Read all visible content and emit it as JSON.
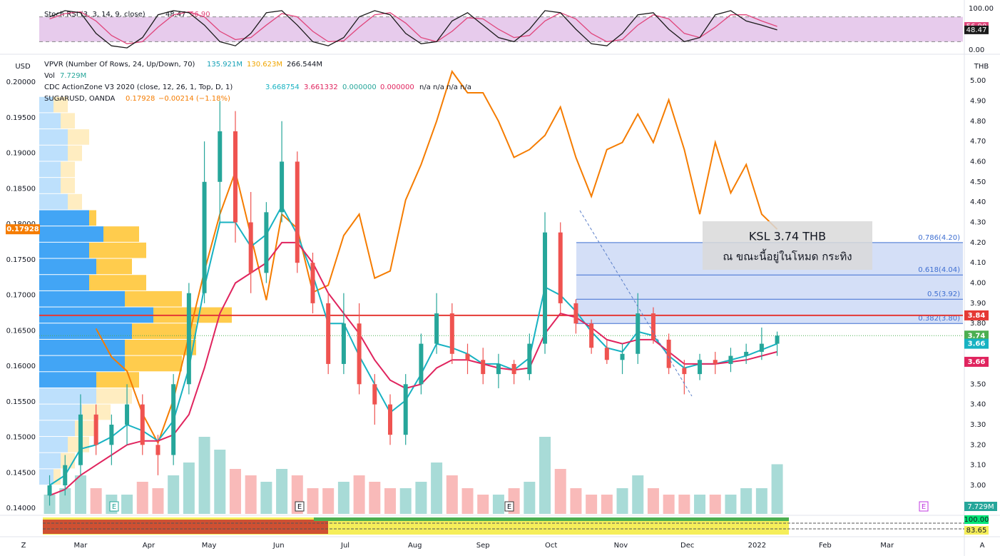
{
  "chart_data": {
    "type": "candlestick",
    "stoch": {
      "title": "Stoch RSI (3, 3, 14, 9, close)",
      "ylim": [
        0,
        100
      ],
      "bands": [
        20,
        80
      ],
      "yticks": [
        {
          "value": 0,
          "label": "0.00"
        },
        {
          "value": 100,
          "label": "100.00"
        }
      ],
      "k": {
        "name": "48.47",
        "color": "#1a1a1a",
        "values": [
          80,
          95,
          90,
          40,
          10,
          5,
          30,
          85,
          95,
          90,
          60,
          20,
          10,
          40,
          90,
          95,
          60,
          20,
          10,
          30,
          80,
          95,
          85,
          40,
          15,
          20,
          70,
          90,
          60,
          30,
          20,
          50,
          95,
          90,
          50,
          15,
          10,
          40,
          85,
          90,
          50,
          20,
          30,
          85,
          95,
          70,
          60,
          48.47
        ]
      },
      "d": {
        "name": "56.90",
        "color": "#e0457b",
        "values": [
          75,
          88,
          92,
          70,
          35,
          15,
          20,
          55,
          85,
          92,
          80,
          45,
          25,
          30,
          60,
          88,
          80,
          45,
          20,
          22,
          55,
          85,
          90,
          65,
          30,
          20,
          45,
          78,
          75,
          50,
          30,
          35,
          70,
          90,
          75,
          40,
          20,
          25,
          60,
          85,
          75,
          40,
          30,
          55,
          85,
          85,
          70,
          56.9
        ],
        "value_labels": {
          "47": "56.90"
        }
      }
    },
    "legend": {
      "vpvr": "VPVR (Number Of Rows, 24, Up/Down, 70)",
      "vpvr_up": "135.921M",
      "vpvr_down": "130.623M",
      "vpvr_total": "266.544M",
      "vol": "Vol",
      "vol_value": "7.729M",
      "cdc": "CDC ActionZone V3 2020 (close, 12, 26, 1, Top, D, 1)",
      "cdc_values": [
        "3.668754",
        "3.661332",
        "0.000000",
        "0.000000",
        "n/a n/a n/a n/a"
      ],
      "sugar": "SUGARUSD, OANDA",
      "sugar_last": "0.17928",
      "sugar_change": "−0.00214 (−1.18%)"
    },
    "ylabel": "USD",
    "y2label": "THB",
    "xlim": [
      -0.67,
      59
    ],
    "xticks": [
      {
        "value": 2,
        "label": "Mar"
      },
      {
        "value": 6.4,
        "label": "Apr"
      },
      {
        "value": 10.3,
        "label": "May"
      },
      {
        "value": 14.8,
        "label": "Jun"
      },
      {
        "value": 19.1,
        "label": "Jul"
      },
      {
        "value": 23.6,
        "label": "Aug"
      },
      {
        "value": 28,
        "label": "Sep"
      },
      {
        "value": 32.4,
        "label": "Oct"
      },
      {
        "value": 36.9,
        "label": "Nov"
      },
      {
        "value": 41.2,
        "label": "Dec"
      },
      {
        "value": 45.7,
        "label": "2022"
      },
      {
        "value": 50.1,
        "label": "Feb"
      },
      {
        "value": 54.1,
        "label": "Mar"
      }
    ],
    "ylim": [
      0.1392,
      0.20302
    ],
    "yticks": [
      {
        "value": 0.14,
        "label": "0.14000"
      },
      {
        "value": 0.145,
        "label": "0.14500"
      },
      {
        "value": 0.15,
        "label": "0.15000"
      },
      {
        "value": 0.155,
        "label": "0.15500"
      },
      {
        "value": 0.16,
        "label": "0.16000"
      },
      {
        "value": 0.165,
        "label": "0.16500"
      },
      {
        "value": 0.17,
        "label": "0.17000"
      },
      {
        "value": 0.175,
        "label": "0.17500"
      },
      {
        "value": 0.18,
        "label": "0.18000"
      },
      {
        "value": 0.185,
        "label": "0.18500"
      },
      {
        "value": 0.19,
        "label": "0.19000"
      },
      {
        "value": 0.195,
        "label": "0.19500"
      },
      {
        "value": 0.2,
        "label": "0.20000"
      }
    ],
    "y2lim": [
      2.859,
      5.099
    ],
    "y2ticks": [
      {
        "value": 3,
        "label": "3.00"
      },
      {
        "value": 3.1,
        "label": "3.10"
      },
      {
        "value": 3.2,
        "label": "3.20"
      },
      {
        "value": 3.3,
        "label": "3.30"
      },
      {
        "value": 3.4,
        "label": "3.40"
      },
      {
        "value": 3.5,
        "label": "3.50"
      },
      {
        "value": 3.6,
        "label": "3.60"
      },
      {
        "value": 3.7,
        "label": "3.70"
      },
      {
        "value": 3.8,
        "label": "3.80"
      },
      {
        "value": 3.9,
        "label": "3.90"
      },
      {
        "value": 4,
        "label": "4.00"
      },
      {
        "value": 4.1,
        "label": "4.10"
      },
      {
        "value": 4.2,
        "label": "4.20"
      },
      {
        "value": 4.3,
        "label": "4.30"
      },
      {
        "value": 4.4,
        "label": "4.40"
      },
      {
        "value": 4.5,
        "label": "4.50"
      },
      {
        "value": 4.6,
        "label": "4.60"
      },
      {
        "value": 4.7,
        "label": "4.70"
      },
      {
        "value": 4.8,
        "label": "4.80"
      },
      {
        "value": 4.9,
        "label": "4.90"
      },
      {
        "value": 5,
        "label": "5.00"
      }
    ],
    "grid": false,
    "candles": {
      "axis": "y2",
      "up_color": "#26a69a",
      "down_color": "#ef5350",
      "open": [
        2.95,
        3.0,
        3.1,
        3.35,
        3.2,
        3.3,
        3.4,
        3.2,
        3.15,
        3.5,
        3.95,
        4.5,
        4.75,
        4.3,
        4.05,
        4.35,
        4.6,
        4.1,
        3.9,
        3.6,
        3.8,
        3.5,
        3.4,
        3.25,
        3.5,
        3.7,
        3.85,
        3.65,
        3.62,
        3.55,
        3.6,
        3.55,
        3.7,
        4.25,
        3.9,
        3.8,
        3.68,
        3.62,
        3.65,
        3.85,
        3.72,
        3.58,
        3.55,
        3.62,
        3.6,
        3.64,
        3.66,
        3.7
      ],
      "high": [
        3.05,
        3.15,
        3.45,
        3.4,
        3.35,
        3.5,
        3.45,
        3.25,
        3.55,
        4.0,
        4.7,
        4.9,
        4.85,
        4.45,
        4.4,
        4.8,
        4.65,
        4.15,
        3.95,
        3.95,
        3.9,
        3.55,
        3.45,
        3.55,
        3.75,
        3.95,
        3.9,
        3.7,
        3.68,
        3.65,
        3.62,
        3.75,
        4.35,
        4.3,
        3.92,
        3.82,
        3.72,
        3.7,
        3.95,
        3.88,
        3.75,
        3.62,
        3.65,
        3.66,
        3.68,
        3.7,
        3.78,
        3.76
      ],
      "low": [
        2.9,
        2.95,
        3.05,
        3.15,
        3.1,
        3.2,
        3.15,
        3.05,
        3.1,
        3.45,
        3.9,
        4.3,
        4.2,
        3.95,
        4.0,
        4.3,
        4.05,
        3.85,
        3.55,
        3.55,
        3.45,
        3.3,
        3.2,
        3.2,
        3.45,
        3.65,
        3.6,
        3.55,
        3.5,
        3.48,
        3.5,
        3.52,
        3.65,
        3.85,
        3.75,
        3.65,
        3.6,
        3.55,
        3.6,
        3.7,
        3.55,
        3.45,
        3.52,
        3.55,
        3.56,
        3.6,
        3.62,
        3.64
      ],
      "close": [
        3.0,
        3.1,
        3.35,
        3.2,
        3.3,
        3.4,
        3.2,
        3.15,
        3.5,
        3.95,
        4.5,
        4.75,
        4.3,
        4.05,
        4.35,
        4.6,
        4.1,
        3.9,
        3.6,
        3.8,
        3.5,
        3.4,
        3.25,
        3.5,
        3.7,
        3.85,
        3.65,
        3.62,
        3.55,
        3.6,
        3.55,
        3.7,
        4.25,
        3.9,
        3.8,
        3.68,
        3.62,
        3.65,
        3.85,
        3.72,
        3.58,
        3.55,
        3.62,
        3.6,
        3.64,
        3.66,
        3.7,
        3.74
      ]
    },
    "series": [
      {
        "name": "SUGARUSD",
        "color": "#f57c00",
        "axis": "y",
        "values": [
          null,
          null,
          null,
          0.1653,
          0.1613,
          0.1593,
          0.1533,
          0.1492,
          0.1553,
          0.1643,
          0.1734,
          0.1814,
          0.1874,
          0.1784,
          0.1693,
          0.1814,
          0.1794,
          0.1704,
          0.1714,
          0.1784,
          0.1814,
          0.1724,
          0.1734,
          0.1834,
          0.1884,
          0.1945,
          0.2015,
          0.1985,
          0.1985,
          0.1945,
          0.1894,
          0.1905,
          0.1925,
          0.1965,
          0.1894,
          0.1839,
          0.1905,
          0.1915,
          0.1955,
          0.1915,
          0.1975,
          0.1905,
          0.1814,
          0.1915,
          0.1844,
          0.1884,
          0.1814,
          0.17928
        ]
      },
      {
        "name": "3.66",
        "color": "#17b2c2",
        "axis": "y2",
        "values": [
          3.0,
          3.05,
          3.18,
          3.2,
          3.24,
          3.3,
          3.27,
          3.22,
          3.32,
          3.58,
          3.98,
          4.3,
          4.3,
          4.18,
          4.24,
          4.38,
          4.24,
          4.04,
          3.8,
          3.8,
          3.64,
          3.5,
          3.36,
          3.42,
          3.55,
          3.7,
          3.68,
          3.65,
          3.6,
          3.6,
          3.57,
          3.63,
          3.98,
          3.94,
          3.86,
          3.76,
          3.68,
          3.66,
          3.76,
          3.74,
          3.64,
          3.58,
          3.6,
          3.6,
          3.62,
          3.64,
          3.67,
          3.7
        ]
      },
      {
        "name": "3.66",
        "color": "#e0245e",
        "axis": "y2",
        "values": [
          2.95,
          2.98,
          3.05,
          3.1,
          3.15,
          3.2,
          3.22,
          3.22,
          3.25,
          3.35,
          3.58,
          3.85,
          4.0,
          4.05,
          4.1,
          4.2,
          4.2,
          4.1,
          3.95,
          3.85,
          3.75,
          3.62,
          3.52,
          3.48,
          3.5,
          3.58,
          3.62,
          3.62,
          3.6,
          3.58,
          3.57,
          3.58,
          3.75,
          3.85,
          3.83,
          3.78,
          3.72,
          3.7,
          3.72,
          3.72,
          3.66,
          3.6,
          3.6,
          3.6,
          3.61,
          3.62,
          3.64,
          3.66
        ]
      }
    ],
    "volume": [
      3,
      4,
      6,
      4,
      3,
      3,
      5,
      4,
      6,
      8,
      12,
      10,
      7,
      6,
      5,
      7,
      6,
      4,
      4,
      5,
      6,
      5,
      4,
      4,
      5,
      8,
      6,
      4,
      3,
      3,
      4,
      5,
      12,
      7,
      4,
      3,
      3,
      4,
      6,
      4,
      3,
      3,
      3,
      3,
      3,
      4,
      4,
      7.729
    ],
    "volume_label": "7.729M",
    "vpvr_rows": {
      "axis": "y2",
      "start": 3.0,
      "step": 0.08,
      "up": [
        2,
        3,
        4,
        5,
        6,
        8,
        8,
        12,
        12,
        13,
        16,
        12,
        7,
        8,
        7,
        9,
        7,
        4,
        3,
        3,
        4,
        4,
        3,
        2
      ],
      "down": [
        1,
        2,
        3,
        3,
        4,
        5,
        6,
        8,
        10,
        9,
        11,
        8,
        8,
        5,
        8,
        5,
        1,
        2,
        2,
        2,
        2,
        3,
        2,
        2
      ]
    },
    "fib_levels": [
      {
        "value": 4.2,
        "label": "0.786(4.20)"
      },
      {
        "value": 4.04,
        "label": "0.618(4.04)"
      },
      {
        "value": 3.92,
        "label": "0.5(3.92)"
      },
      {
        "value": 3.8,
        "label": "0.382(3.80)"
      }
    ],
    "hline": {
      "value": 3.84,
      "color": "#e53935"
    },
    "last_price": {
      "value": 3.74,
      "color": "#4caf50"
    },
    "sugar_price": {
      "value": 0.17928,
      "color": "#f57c00"
    },
    "annotation": [
      "KSL 3.74 THB",
      "ณ ขณะนี้อยู่ในโหมด กระทิง"
    ],
    "events": [
      "E",
      "E",
      "E",
      "E"
    ],
    "cdc_panel": {
      "labels": [
        "100.00",
        "83.65"
      ]
    },
    "corner_labels": [
      "Z",
      "A"
    ]
  }
}
